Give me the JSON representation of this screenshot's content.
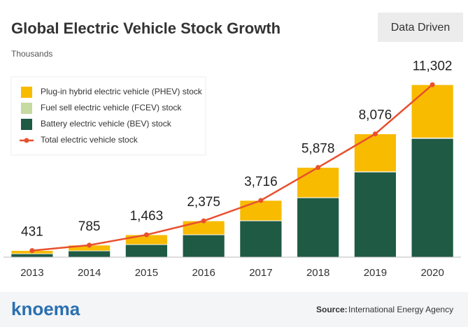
{
  "chart_data": {
    "type": "stacked-bar-line",
    "title": "Global Electric Vehicle Stock Growth",
    "subtitle": "Thousands",
    "categories": [
      "2013",
      "2014",
      "2015",
      "2016",
      "2017",
      "2018",
      "2019",
      "2020"
    ],
    "ylim": [
      0,
      12000
    ],
    "series": [
      {
        "name": "Battery electric vehicle (BEV) stock",
        "color": "#1e5a44",
        "values": [
          220,
          410,
          824,
          1465,
          2380,
          3890,
          5580,
          7780
        ]
      },
      {
        "name": "Fuel sell electric vehicle (FCEV) stock",
        "color": "#c5dba0",
        "values": [
          0,
          0,
          1,
          5,
          7,
          11,
          18,
          33
        ]
      },
      {
        "name": "Plug-in hybrid electric vehicle (PHEV) stock",
        "color": "#f8bb00",
        "values": [
          211,
          375,
          638,
          905,
          1329,
          1977,
          2478,
          3489
        ]
      },
      {
        "name": "Total electric vehicle stock",
        "color": "#e8502e",
        "type": "line",
        "values": [
          431,
          785,
          1463,
          2375,
          3716,
          5878,
          8076,
          11302
        ],
        "value_labels": [
          "431",
          "785",
          "1,463",
          "2,375",
          "3,716",
          "5,878",
          "8,076",
          "11,302"
        ]
      }
    ]
  },
  "badge": "Data Driven",
  "brand": "knoema",
  "source_label": "Source:",
  "source": "International Energy Agency"
}
